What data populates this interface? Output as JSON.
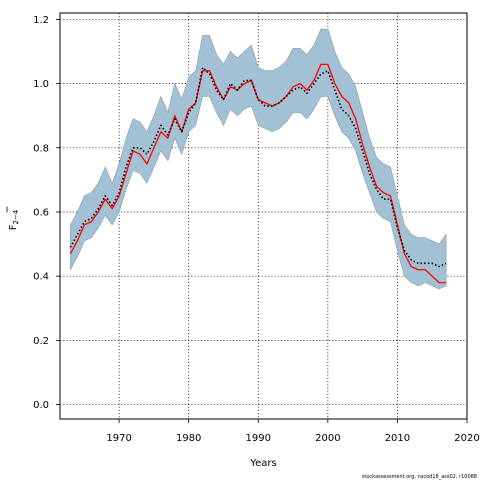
{
  "chart_data": {
    "type": "line",
    "xlabel": "Years",
    "ylabel": "F",
    "ylabel_sub": "2−4",
    "xlim": [
      1961.5,
      2020
    ],
    "ylim": [
      -0.045,
      1.22
    ],
    "xticks": [
      1970,
      1980,
      1990,
      2000,
      2010,
      2020
    ],
    "yticks": [
      0.0,
      0.2,
      0.4,
      0.6,
      0.8,
      1.0,
      1.2
    ],
    "grid": true,
    "credit": "stockassessment.org, nscod18_ass02, r10088",
    "x": [
      1963,
      1964,
      1965,
      1966,
      1967,
      1968,
      1969,
      1970,
      1971,
      1972,
      1973,
      1974,
      1975,
      1976,
      1977,
      1978,
      1979,
      1980,
      1981,
      1982,
      1983,
      1984,
      1985,
      1986,
      1987,
      1988,
      1989,
      1990,
      1991,
      1992,
      1993,
      1994,
      1995,
      1996,
      1997,
      1998,
      1999,
      2000,
      2001,
      2002,
      2003,
      2004,
      2005,
      2006,
      2007,
      2008,
      2009,
      2010,
      2011,
      2012,
      2013,
      2014,
      2015,
      2016,
      2017
    ],
    "series": [
      {
        "role": "estimate",
        "color": "#ff0000",
        "style": "solid",
        "values": [
          0.47,
          0.51,
          0.56,
          0.57,
          0.6,
          0.64,
          0.61,
          0.65,
          0.72,
          0.79,
          0.78,
          0.75,
          0.8,
          0.85,
          0.83,
          0.9,
          0.85,
          0.92,
          0.94,
          1.04,
          1.04,
          0.99,
          0.95,
          0.99,
          0.98,
          1.0,
          1.01,
          0.95,
          0.94,
          0.93,
          0.94,
          0.96,
          0.99,
          1.0,
          0.98,
          1.01,
          1.06,
          1.06,
          1.0,
          0.96,
          0.94,
          0.89,
          0.81,
          0.74,
          0.68,
          0.66,
          0.65,
          0.56,
          0.47,
          0.43,
          0.42,
          0.42,
          0.4,
          0.38,
          0.38
        ]
      },
      {
        "role": "reference",
        "color": "#000000",
        "style": "dotted",
        "values": [
          0.49,
          0.53,
          0.57,
          0.58,
          0.61,
          0.65,
          0.62,
          0.66,
          0.74,
          0.8,
          0.8,
          0.78,
          0.82,
          0.87,
          0.84,
          0.89,
          0.85,
          0.91,
          0.94,
          1.05,
          1.03,
          0.98,
          0.95,
          1.0,
          0.98,
          1.01,
          1.01,
          0.95,
          0.93,
          0.93,
          0.94,
          0.96,
          0.98,
          0.99,
          0.97,
          1.0,
          1.03,
          1.04,
          0.98,
          0.92,
          0.9,
          0.86,
          0.79,
          0.72,
          0.67,
          0.64,
          0.64,
          0.55,
          0.48,
          0.45,
          0.44,
          0.44,
          0.44,
          0.43,
          0.44
        ]
      }
    ],
    "band": {
      "color": "#a3c1d4",
      "edge": "#8ea2ae",
      "upper": [
        0.56,
        0.6,
        0.65,
        0.66,
        0.69,
        0.74,
        0.69,
        0.75,
        0.83,
        0.89,
        0.88,
        0.85,
        0.9,
        0.96,
        0.91,
        1.0,
        0.95,
        1.02,
        1.04,
        1.15,
        1.15,
        1.09,
        1.06,
        1.1,
        1.08,
        1.1,
        1.12,
        1.05,
        1.04,
        1.04,
        1.05,
        1.07,
        1.11,
        1.11,
        1.09,
        1.12,
        1.17,
        1.17,
        1.1,
        1.05,
        1.03,
        0.99,
        0.91,
        0.83,
        0.77,
        0.75,
        0.74,
        0.65,
        0.56,
        0.53,
        0.52,
        0.52,
        0.51,
        0.5,
        0.53
      ],
      "lower": [
        0.42,
        0.46,
        0.51,
        0.52,
        0.55,
        0.59,
        0.56,
        0.6,
        0.67,
        0.73,
        0.72,
        0.69,
        0.74,
        0.79,
        0.76,
        0.83,
        0.78,
        0.85,
        0.87,
        0.96,
        0.96,
        0.91,
        0.87,
        0.92,
        0.9,
        0.92,
        0.93,
        0.87,
        0.86,
        0.85,
        0.86,
        0.88,
        0.91,
        0.91,
        0.89,
        0.92,
        0.96,
        0.96,
        0.9,
        0.85,
        0.83,
        0.79,
        0.72,
        0.66,
        0.6,
        0.58,
        0.57,
        0.48,
        0.4,
        0.38,
        0.37,
        0.38,
        0.37,
        0.36,
        0.37
      ]
    }
  }
}
